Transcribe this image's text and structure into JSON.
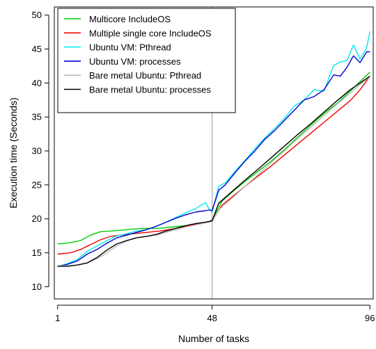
{
  "chart_data": {
    "type": "line",
    "title": "",
    "xlabel": "Number of tasks",
    "ylabel": "Execution time (Seconds)",
    "xlim": [
      1,
      96
    ],
    "ylim": [
      10,
      50
    ],
    "x_ticks": [
      1,
      48,
      96
    ],
    "y_ticks": [
      10,
      15,
      20,
      25,
      30,
      35,
      40,
      45,
      50
    ],
    "reference_line_x": 48,
    "grid": false,
    "legend_position": "top-left",
    "series": [
      {
        "name": "Multicore IncludeOS",
        "color": "#00cc00",
        "x": [
          1,
          5,
          8,
          11,
          14,
          17,
          20,
          24,
          28,
          32,
          36,
          40,
          44,
          47,
          48,
          51,
          54,
          58,
          62,
          66,
          70,
          74,
          78,
          82,
          86,
          90,
          93,
          96
        ],
        "y": [
          16.3,
          16.5,
          16.8,
          17.6,
          18.1,
          18.2,
          18.3,
          18.5,
          18.6,
          18.6,
          18.8,
          19.0,
          19.2,
          19.6,
          19.8,
          22.6,
          23.9,
          25.5,
          27.0,
          28.5,
          30.2,
          32.0,
          33.8,
          35.5,
          37.0,
          38.8,
          40.2,
          41.6
        ]
      },
      {
        "name": "Multiple single core IncludeOS",
        "color": "#ee0000",
        "x": [
          1,
          5,
          8,
          11,
          14,
          17,
          20,
          24,
          28,
          32,
          36,
          40,
          44,
          47,
          48,
          51,
          54,
          58,
          62,
          66,
          70,
          74,
          78,
          82,
          86,
          90,
          93,
          96
        ],
        "y": [
          14.8,
          15.0,
          15.5,
          16.2,
          16.9,
          17.4,
          17.6,
          17.8,
          18.0,
          18.2,
          18.5,
          18.9,
          19.3,
          19.6,
          19.7,
          22.0,
          23.2,
          24.8,
          26.3,
          27.8,
          29.4,
          31.0,
          32.6,
          34.2,
          35.8,
          37.4,
          39.0,
          41.0
        ]
      },
      {
        "name": "Ubuntu VM: Pthread",
        "color": "#00e8ee",
        "x": [
          1,
          4,
          7,
          10,
          13,
          16,
          19,
          22,
          25,
          28,
          31,
          34,
          37,
          40,
          43,
          46,
          47,
          48,
          50,
          52,
          55,
          58,
          61,
          64,
          67,
          70,
          73,
          76,
          79,
          82,
          85,
          87,
          89,
          91,
          93,
          95,
          96
        ],
        "y": [
          13.0,
          13.4,
          14.0,
          15.2,
          16.0,
          16.8,
          17.5,
          17.8,
          18.2,
          18.4,
          18.9,
          19.5,
          20.2,
          20.9,
          21.5,
          22.4,
          21.5,
          21.0,
          24.8,
          25.3,
          27.0,
          28.6,
          30.3,
          31.9,
          33.3,
          34.8,
          36.6,
          37.5,
          39.0,
          38.8,
          42.6,
          43.1,
          43.3,
          45.6,
          43.5,
          45.2,
          47.6
        ]
      },
      {
        "name": "Ubuntu VM: processes",
        "color": "#0000cc",
        "x": [
          1,
          4,
          7,
          10,
          13,
          16,
          19,
          22,
          25,
          28,
          31,
          34,
          37,
          40,
          43,
          46,
          47,
          48,
          50,
          52,
          55,
          58,
          61,
          64,
          67,
          70,
          73,
          76,
          79,
          82,
          85,
          87,
          89,
          91,
          93,
          95,
          96
        ],
        "y": [
          13.0,
          13.3,
          13.8,
          14.8,
          15.5,
          16.4,
          17.2,
          17.6,
          18.0,
          18.4,
          18.9,
          19.5,
          20.1,
          20.6,
          21.0,
          21.2,
          21.3,
          21.2,
          24.2,
          25.0,
          26.8,
          28.5,
          30.0,
          31.7,
          33.0,
          34.5,
          36.0,
          37.5,
          38.0,
          39.0,
          41.2,
          41.0,
          42.3,
          44.0,
          43.0,
          44.6,
          44.6
        ]
      },
      {
        "name": "Bare metal Ubuntu: Pthread",
        "color": "#bbbbbb",
        "x": [
          1,
          4,
          7,
          10,
          13,
          16,
          19,
          22,
          25,
          28,
          31,
          34,
          37,
          40,
          43,
          46,
          48,
          50,
          54,
          58,
          62,
          66,
          70,
          74,
          78,
          82,
          86,
          90,
          93,
          96
        ],
        "y": [
          13.1,
          13.1,
          13.2,
          13.5,
          14.1,
          15.0,
          16.0,
          16.7,
          17.2,
          17.4,
          17.6,
          18.0,
          18.4,
          18.8,
          19.1,
          19.4,
          19.6,
          21.3,
          23.0,
          24.8,
          26.5,
          28.3,
          30.0,
          31.8,
          33.5,
          35.2,
          36.9,
          38.5,
          39.8,
          40.9
        ]
      },
      {
        "name": "Bare metal Ubuntu: processes",
        "color": "#000000",
        "x": [
          1,
          4,
          7,
          10,
          13,
          16,
          19,
          22,
          25,
          28,
          31,
          34,
          37,
          40,
          43,
          46,
          48,
          50,
          54,
          58,
          62,
          66,
          70,
          74,
          78,
          82,
          86,
          90,
          93,
          96
        ],
        "y": [
          13.0,
          13.0,
          13.2,
          13.5,
          14.3,
          15.4,
          16.3,
          16.8,
          17.2,
          17.4,
          17.7,
          18.2,
          18.6,
          19.0,
          19.3,
          19.5,
          19.7,
          22.3,
          24.0,
          25.7,
          27.3,
          29.0,
          30.7,
          32.4,
          34.0,
          35.7,
          37.4,
          39.0,
          40.0,
          41.0
        ]
      }
    ]
  }
}
